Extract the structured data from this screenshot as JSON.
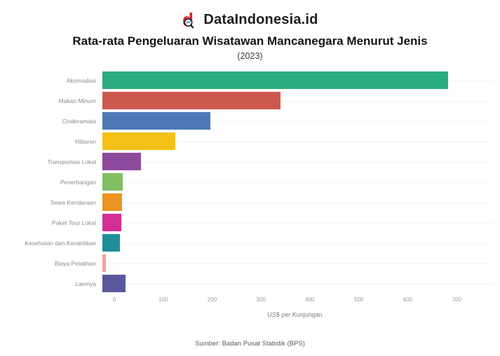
{
  "header": {
    "brand": "DataIndonesia.id",
    "brand_color": "#e02128",
    "title": "Rata-rata Pengeluaran Wisatawan Mancanegara Menurut Jenis",
    "subtitle": "(2023)"
  },
  "chart_data": {
    "type": "bar",
    "orientation": "horizontal",
    "title": "Rata-rata Pengeluaran Wisatawan Mancanegara Menurut Jenis (2023)",
    "categories": [
      "Akomodasi",
      "Makan Minum",
      "Cinderamata",
      "Hiburan",
      "Transportasi Lokal",
      "Penerbangan",
      "Sewa Kendaraan",
      "Paket Tour Lokal",
      "Kesehatan dan Kecantikan",
      "Biaya Pelatihan",
      "Lainnya"
    ],
    "values": [
      672,
      346,
      210,
      142,
      75,
      40,
      38,
      37,
      34,
      7,
      45
    ],
    "bar_colors": [
      "#2BAC7E",
      "#CC594D",
      "#4C79B5",
      "#F3C018",
      "#8D4A9C",
      "#80BF61",
      "#EC9422",
      "#D32D96",
      "#1E8F99",
      "#F5A19A",
      "#5A589C"
    ],
    "xlabel": "US$ per Kunjungan",
    "ylabel": "",
    "x_ticks": [
      0,
      100,
      200,
      300,
      400,
      500,
      600,
      700
    ],
    "xlim": [
      0,
      760
    ],
    "grid": "light horizontal row lines",
    "legend": "none"
  },
  "footer": {
    "source": "Sumber: Badan Pusat Statistik (BPS)"
  }
}
